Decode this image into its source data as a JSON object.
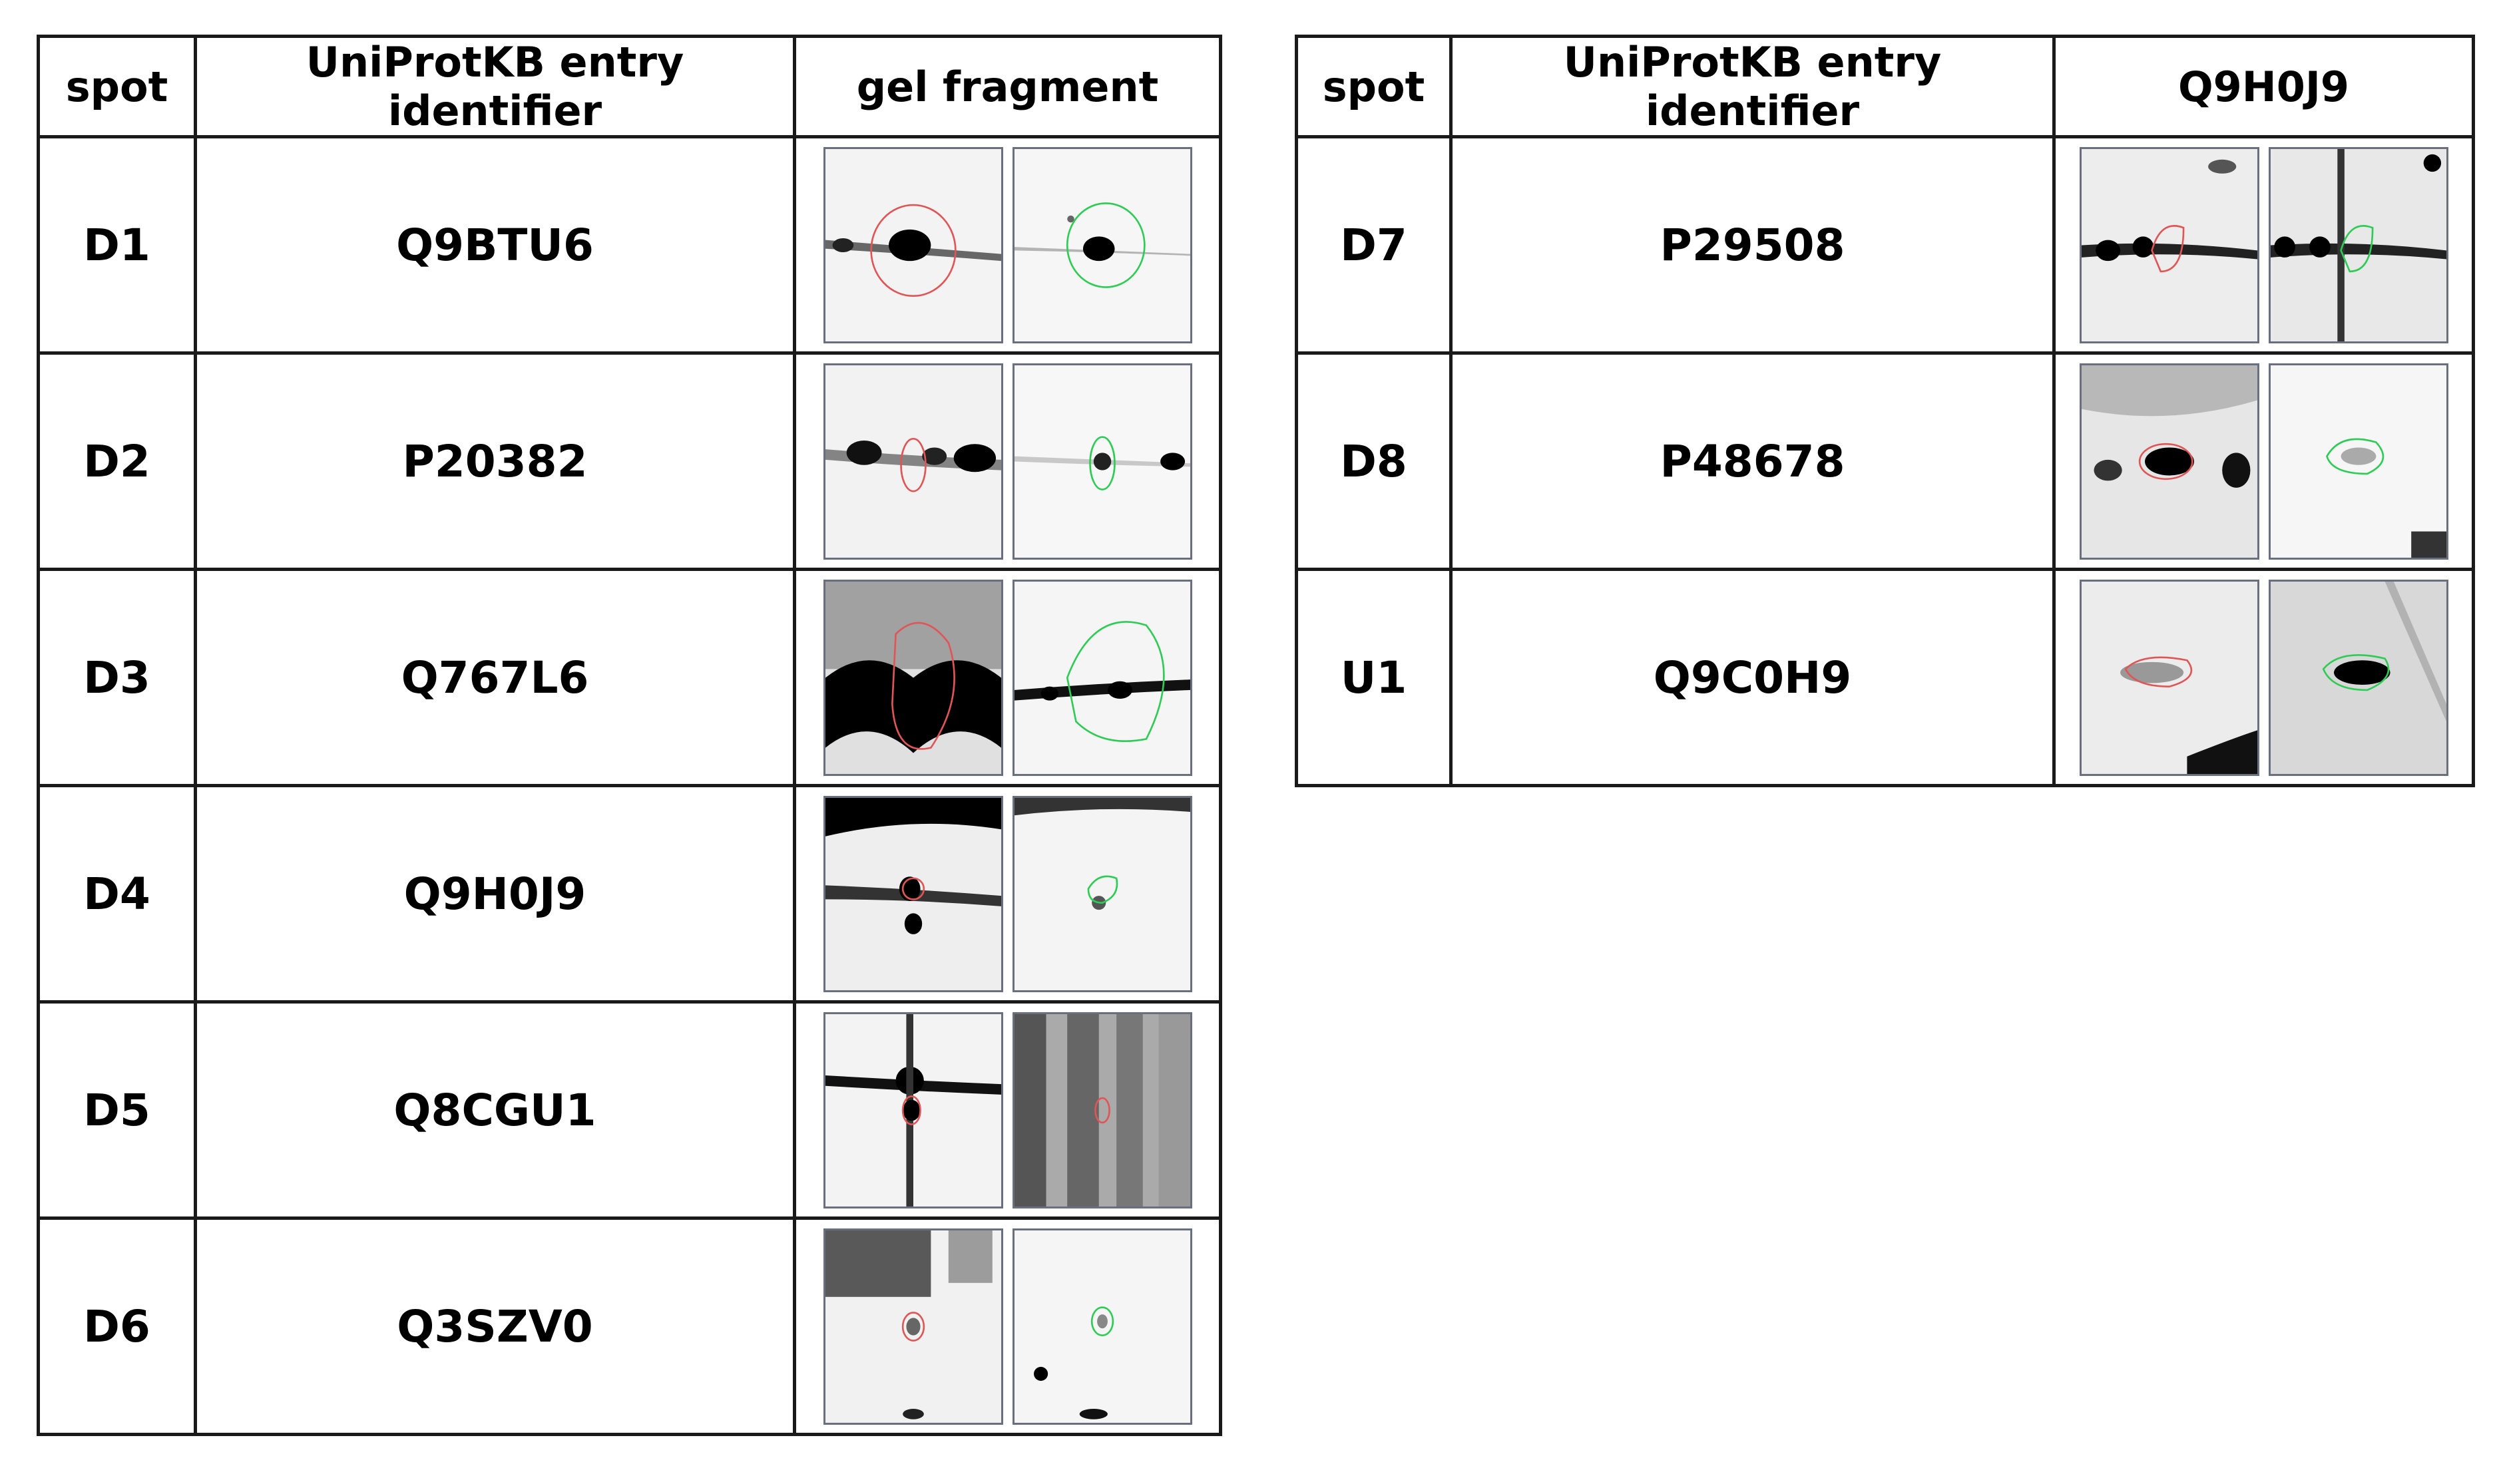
{
  "left_table": {
    "headers": [
      "spot",
      "UniProtKB entry identifier",
      "gel fragment"
    ],
    "rows": [
      {
        "spot": "D1",
        "id": "Q9BTU6"
      },
      {
        "spot": "D2",
        "id": "P20382"
      },
      {
        "spot": "D3",
        "id": "Q767L6"
      },
      {
        "spot": "D4",
        "id": "Q9H0J9"
      },
      {
        "spot": "D5",
        "id": "Q8CGU1"
      },
      {
        "spot": "D6",
        "id": "Q3SZV0"
      }
    ]
  },
  "right_table": {
    "headers": [
      "spot",
      "UniProtKB entry identifier",
      "Q9H0J9"
    ],
    "rows": [
      {
        "spot": "D7",
        "id": "P29508"
      },
      {
        "spot": "D8",
        "id": "P48678"
      },
      {
        "spot": "U1",
        "id": "Q9C0H9"
      }
    ]
  },
  "colors": {
    "red_outline": "#e05555",
    "green_outline": "#2ecc55",
    "border": "#1a1a1a"
  }
}
